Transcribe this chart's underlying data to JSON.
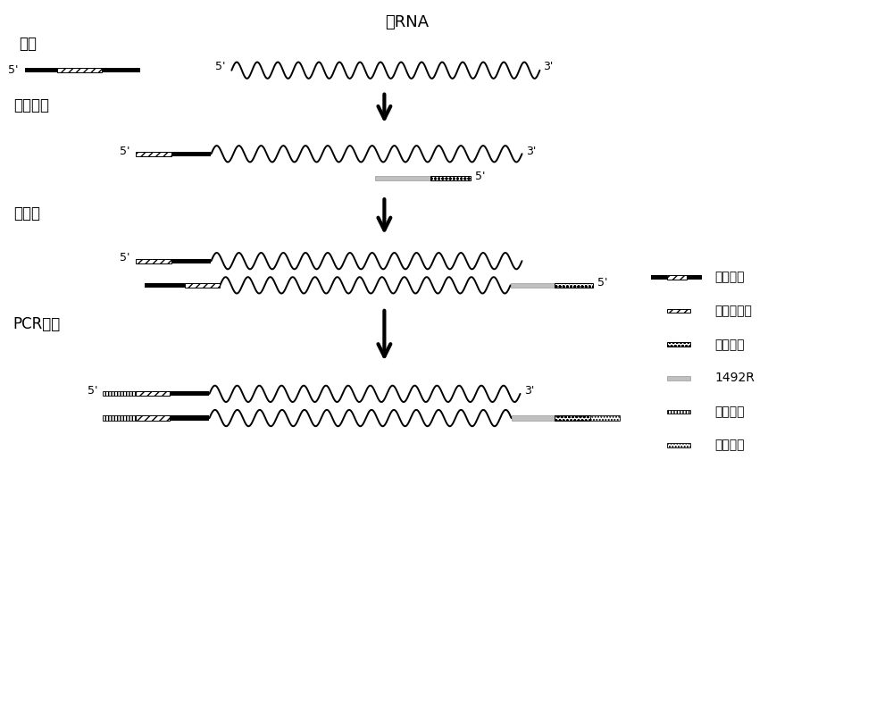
{
  "title": "总RNA",
  "bg_color": "#ffffff",
  "text_color": "#000000",
  "labels": {
    "adapter": "接头",
    "ligation": "接头连接",
    "rt": "反转录",
    "pcr": "PCR扩增",
    "legend_first_adapter": "第一接头",
    "legend_fwd_primer": "前引物位点",
    "legend_second_adapter": "第二接头",
    "legend_1492R": "1492R",
    "legend_fwd_barcode": "前向条码",
    "legend_rev_barcode": "后向条码"
  },
  "colors": {
    "black": "#000000",
    "medium_gray": "#999999",
    "light_gray": "#c0c0c0"
  }
}
